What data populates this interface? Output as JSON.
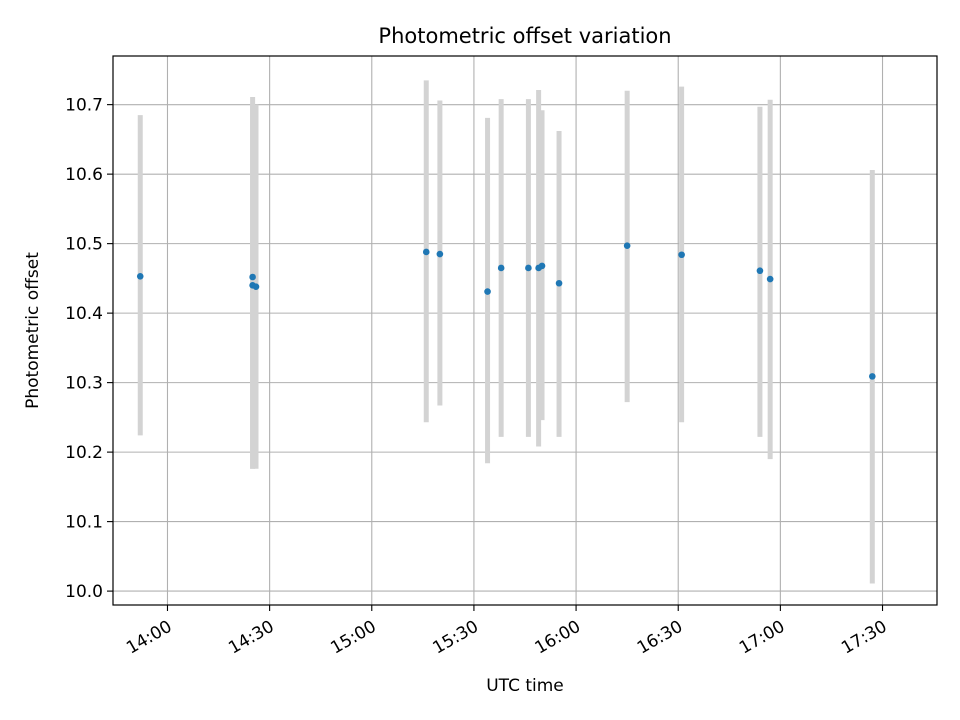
{
  "chart_data": {
    "type": "scatter",
    "title": "Photometric offset variation",
    "xlabel": "UTC time",
    "ylabel": "Photometric offset",
    "grid": true,
    "xlim": [
      "13:44",
      "17:46"
    ],
    "ylim": [
      9.98,
      10.77
    ],
    "x_ticks": [
      "14:00",
      "14:30",
      "15:00",
      "15:30",
      "16:00",
      "16:30",
      "17:00",
      "17:30"
    ],
    "y_ticks": [
      10.0,
      10.1,
      10.2,
      10.3,
      10.4,
      10.5,
      10.6,
      10.7
    ],
    "point_color": "#1f77b4",
    "errorbar_color": "#d3d3d3",
    "points": [
      {
        "time": "13:52",
        "y": 10.453,
        "err_low": 10.224,
        "err_high": 10.685
      },
      {
        "time": "14:25",
        "y": 10.452,
        "err_low": 10.176,
        "err_high": 10.711
      },
      {
        "time": "14:25",
        "y": 10.44,
        "err_low": 10.176,
        "err_high": 10.7
      },
      {
        "time": "14:26",
        "y": 10.438,
        "err_low": 10.176,
        "err_high": 10.7
      },
      {
        "time": "15:16",
        "y": 10.488,
        "err_low": 10.243,
        "err_high": 10.735
      },
      {
        "time": "15:20",
        "y": 10.485,
        "err_low": 10.267,
        "err_high": 10.706
      },
      {
        "time": "15:34",
        "y": 10.431,
        "err_low": 10.184,
        "err_high": 10.681
      },
      {
        "time": "15:38",
        "y": 10.465,
        "err_low": 10.222,
        "err_high": 10.708
      },
      {
        "time": "15:46",
        "y": 10.465,
        "err_low": 10.222,
        "err_high": 10.708
      },
      {
        "time": "15:49",
        "y": 10.465,
        "err_low": 10.208,
        "err_high": 10.721
      },
      {
        "time": "15:50",
        "y": 10.468,
        "err_low": 10.246,
        "err_high": 10.692
      },
      {
        "time": "15:55",
        "y": 10.443,
        "err_low": 10.222,
        "err_high": 10.662
      },
      {
        "time": "16:15",
        "y": 10.497,
        "err_low": 10.272,
        "err_high": 10.72
      },
      {
        "time": "16:31",
        "y": 10.484,
        "err_low": 10.243,
        "err_high": 10.726
      },
      {
        "time": "16:54",
        "y": 10.461,
        "err_low": 10.222,
        "err_high": 10.697
      },
      {
        "time": "16:57",
        "y": 10.449,
        "err_low": 10.19,
        "err_high": 10.707
      },
      {
        "time": "17:27",
        "y": 10.309,
        "err_low": 10.011,
        "err_high": 10.606
      }
    ]
  }
}
